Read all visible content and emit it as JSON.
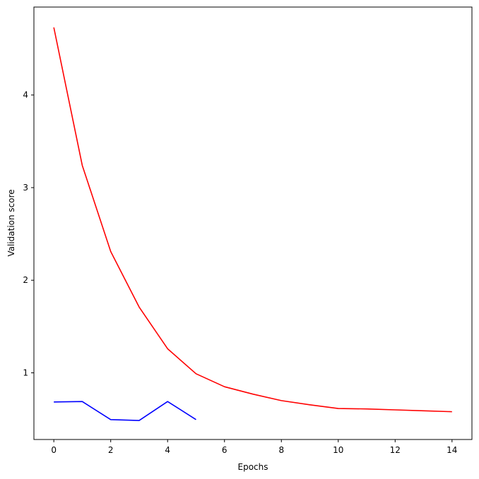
{
  "chart_data": {
    "type": "line",
    "title": "",
    "xlabel": "Epochs",
    "ylabel": "Validation score",
    "xlim": [
      -0.7,
      14.7
    ],
    "ylim": [
      0.28,
      4.95
    ],
    "xticks": [
      0,
      2,
      4,
      6,
      8,
      10,
      12,
      14
    ],
    "yticks": [
      1,
      2,
      3,
      4
    ],
    "grid": false,
    "series": [
      {
        "color": "#ff0000",
        "x": [
          0,
          1,
          2,
          3,
          4,
          5,
          6,
          7,
          8,
          9,
          10,
          11,
          12,
          13,
          14
        ],
        "y": [
          4.73,
          3.24,
          2.31,
          1.71,
          1.26,
          0.99,
          0.85,
          0.77,
          0.7,
          0.655,
          0.615,
          0.61,
          0.6,
          0.59,
          0.58
        ]
      },
      {
        "color": "#0000ff",
        "x": [
          0,
          1,
          2,
          3,
          4,
          5
        ],
        "y": [
          0.685,
          0.69,
          0.495,
          0.485,
          0.69,
          0.495
        ]
      }
    ]
  }
}
